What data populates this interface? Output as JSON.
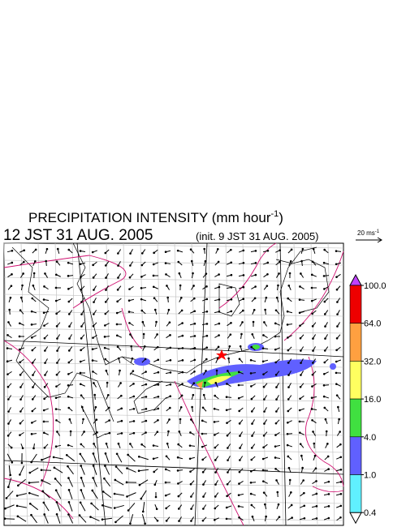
{
  "header": {
    "title": {
      "text": "PRECIPITATION INTENSITY (mm hour",
      "sup": "-1",
      "end": ")"
    },
    "time": "12 JST 31 AUG. 2005",
    "init": "(init. 9 JST 31 AUG. 2005)"
  },
  "wind_scale": {
    "text": "20 ms",
    "sup": "-1"
  },
  "legend": {
    "ticks": [
      {
        "value": 100,
        "label": "100.0"
      },
      {
        "value": 64,
        "label": "64.0"
      },
      {
        "value": 32,
        "label": "32.0"
      },
      {
        "value": 16,
        "label": "16.0"
      },
      {
        "value": 4,
        "label": "4.0"
      },
      {
        "value": 1,
        "label": "1.0"
      },
      {
        "value": 0.4,
        "label": "0.4"
      }
    ],
    "colors": [
      "#ee0000",
      "#ffa040",
      "#ffff60",
      "#40e040",
      "#6060ff",
      "#60f0ff"
    ],
    "over_color": "#c040ff",
    "under_color": "#ffffff"
  }
}
